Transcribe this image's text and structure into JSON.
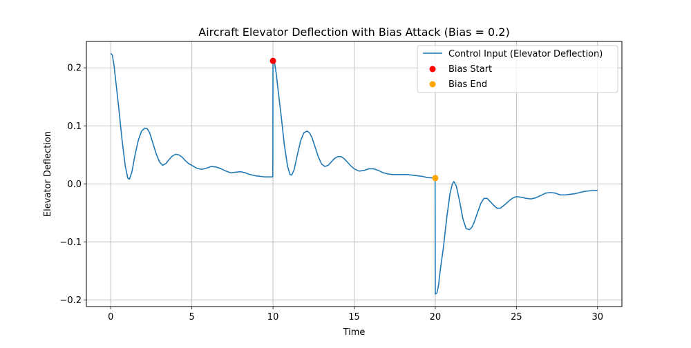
{
  "chart_data": {
    "type": "line",
    "title": "Aircraft Elevator Deflection with Bias Attack (Bias = 0.2)",
    "xlabel": "Time",
    "ylabel": "Elevator Deflection",
    "xlim": [
      -1.5,
      31.5
    ],
    "ylim": [
      -0.2115,
      0.2455
    ],
    "xticks": [
      0,
      5,
      10,
      15,
      20,
      25,
      30
    ],
    "xtick_labels": [
      "0",
      "5",
      "10",
      "15",
      "20",
      "25",
      "30"
    ],
    "yticks": [
      -0.2,
      -0.1,
      0.0,
      0.1,
      0.2
    ],
    "ytick_labels": [
      "−0.2",
      "−0.1",
      "0.0",
      "0.1",
      "0.2"
    ],
    "grid": true,
    "legend_position": "top-right",
    "series": [
      {
        "name": "Control Input (Elevator Deflection)",
        "kind": "line",
        "color": "#1f77b4",
        "x": [
          0,
          0.1,
          0.2,
          0.3,
          0.5,
          0.7,
          0.9,
          1.05,
          1.15,
          1.3,
          1.5,
          1.7,
          1.9,
          2.1,
          2.25,
          2.4,
          2.6,
          2.8,
          3.0,
          3.2,
          3.4,
          3.6,
          3.8,
          4.0,
          4.2,
          4.4,
          4.6,
          4.8,
          5.0,
          5.3,
          5.6,
          5.9,
          6.2,
          6.5,
          6.8,
          7.1,
          7.4,
          7.7,
          8.0,
          8.3,
          8.6,
          8.9,
          9.2,
          9.5,
          9.99,
          10.0,
          10.1,
          10.2,
          10.3,
          10.5,
          10.7,
          10.9,
          11.05,
          11.15,
          11.3,
          11.5,
          11.7,
          11.9,
          12.1,
          12.25,
          12.4,
          12.6,
          12.8,
          13.0,
          13.2,
          13.4,
          13.6,
          13.8,
          14.0,
          14.2,
          14.4,
          14.6,
          14.8,
          15.0,
          15.3,
          15.6,
          15.9,
          16.2,
          16.5,
          16.8,
          17.1,
          17.4,
          17.7,
          18.0,
          18.3,
          18.6,
          18.9,
          19.2,
          19.5,
          19.99,
          20.0,
          20.1,
          20.2,
          20.3,
          20.5,
          20.7,
          20.9,
          21.05,
          21.15,
          21.3,
          21.5,
          21.7,
          21.9,
          22.1,
          22.25,
          22.4,
          22.6,
          22.8,
          23.0,
          23.2,
          23.4,
          23.6,
          23.8,
          24.0,
          24.2,
          24.4,
          24.6,
          24.8,
          25.0,
          25.3,
          25.6,
          25.9,
          26.2,
          26.5,
          26.8,
          27.1,
          27.4,
          27.7,
          28.0,
          28.3,
          28.6,
          28.9,
          29.2,
          29.5,
          30.0
        ],
        "y": [
          0.225,
          0.222,
          0.205,
          0.18,
          0.13,
          0.075,
          0.03,
          0.01,
          0.008,
          0.02,
          0.05,
          0.075,
          0.091,
          0.096,
          0.095,
          0.088,
          0.07,
          0.052,
          0.038,
          0.032,
          0.035,
          0.042,
          0.048,
          0.051,
          0.05,
          0.046,
          0.04,
          0.035,
          0.032,
          0.027,
          0.025,
          0.027,
          0.03,
          0.029,
          0.026,
          0.022,
          0.019,
          0.02,
          0.021,
          0.019,
          0.016,
          0.014,
          0.013,
          0.012,
          0.012,
          0.212,
          0.208,
          0.19,
          0.165,
          0.118,
          0.067,
          0.03,
          0.016,
          0.015,
          0.024,
          0.05,
          0.074,
          0.088,
          0.091,
          0.088,
          0.08,
          0.063,
          0.046,
          0.034,
          0.03,
          0.032,
          0.038,
          0.044,
          0.047,
          0.047,
          0.043,
          0.037,
          0.031,
          0.026,
          0.022,
          0.023,
          0.026,
          0.026,
          0.023,
          0.019,
          0.017,
          0.016,
          0.016,
          0.016,
          0.016,
          0.015,
          0.014,
          0.013,
          0.011,
          0.01,
          -0.19,
          -0.188,
          -0.175,
          -0.15,
          -0.11,
          -0.06,
          -0.018,
          0.0,
          0.004,
          -0.004,
          -0.03,
          -0.06,
          -0.077,
          -0.079,
          -0.075,
          -0.066,
          -0.05,
          -0.034,
          -0.025,
          -0.025,
          -0.031,
          -0.037,
          -0.042,
          -0.042,
          -0.038,
          -0.033,
          -0.028,
          -0.024,
          -0.022,
          -0.023,
          -0.025,
          -0.026,
          -0.024,
          -0.02,
          -0.016,
          -0.015,
          -0.016,
          -0.019,
          -0.019,
          -0.018,
          -0.017,
          -0.015,
          -0.013,
          -0.012,
          -0.011
        ]
      },
      {
        "name": "Bias Start",
        "kind": "scatter",
        "color": "#ff0000",
        "x": [
          10.0
        ],
        "y": [
          0.212
        ]
      },
      {
        "name": "Bias End",
        "kind": "scatter",
        "color": "#ffa500",
        "x": [
          20.0
        ],
        "y": [
          0.01
        ]
      }
    ]
  }
}
